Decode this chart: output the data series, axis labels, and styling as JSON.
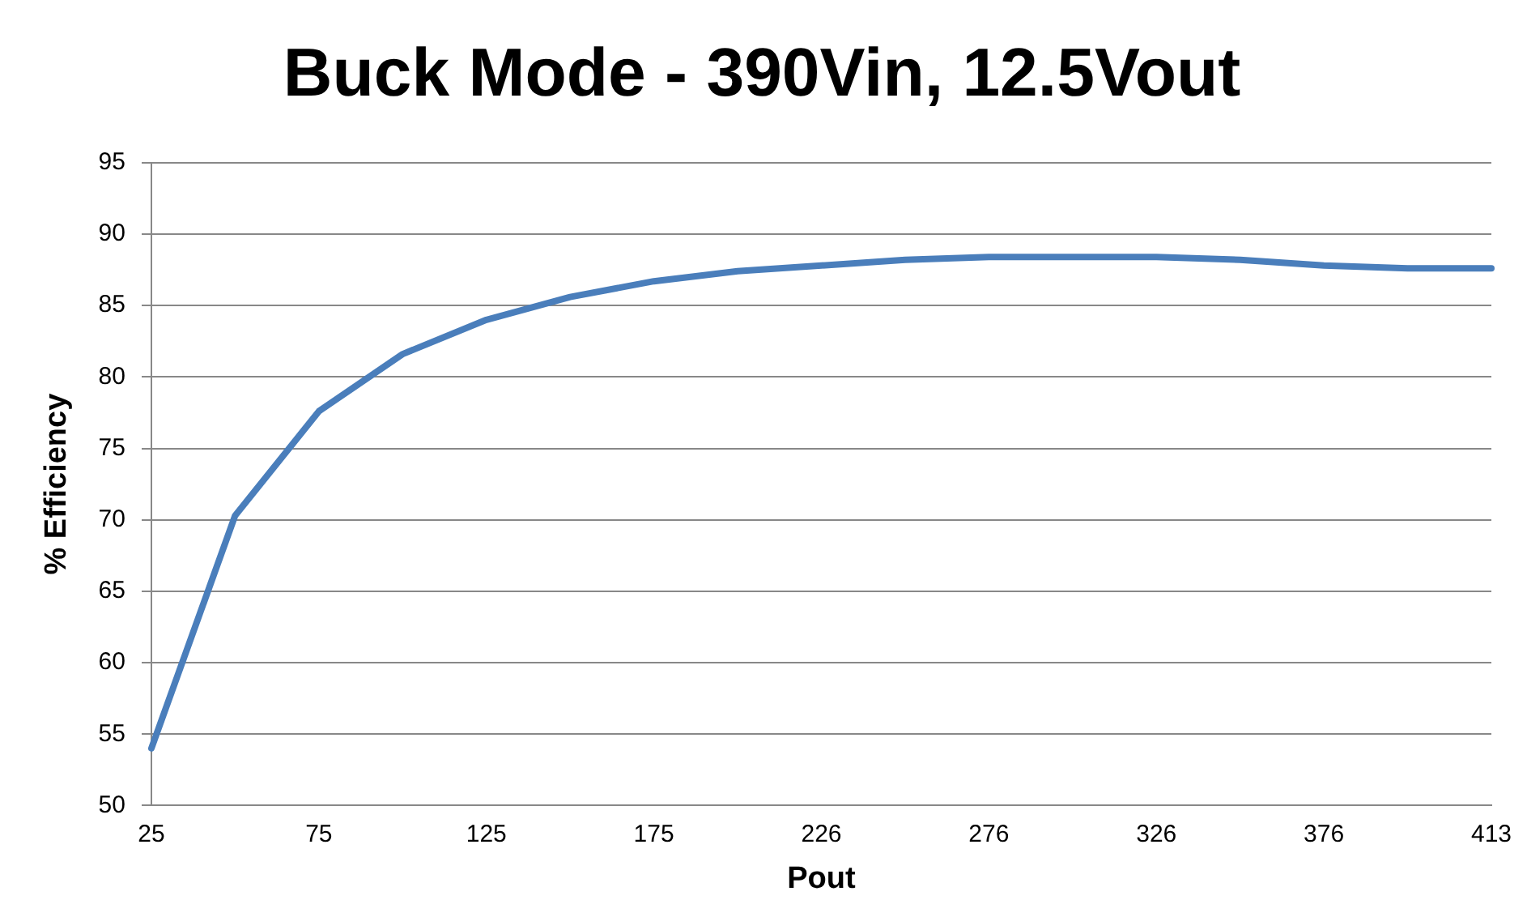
{
  "chart_data": {
    "type": "line",
    "title": "Buck Mode - 390Vin, 12.5Vout",
    "xlabel": "Pout",
    "ylabel": "% Efficiency",
    "categories": [
      "25",
      null,
      "75",
      null,
      "125",
      null,
      "175",
      null,
      "226",
      null,
      "276",
      null,
      "326",
      null,
      "376",
      null,
      "413"
    ],
    "series": [
      {
        "color": "#4a7ebb",
        "values": [
          54,
          70.3,
          77.6,
          81.6,
          84,
          85.6,
          86.7,
          87.4,
          87.8,
          88.2,
          88.4,
          88.4,
          88.4,
          88.2,
          87.8,
          87.6,
          87.6
        ]
      }
    ],
    "ylim": [
      50,
      95
    ],
    "yticks": [
      50,
      55,
      60,
      65,
      70,
      75,
      80,
      85,
      90,
      95
    ],
    "grid": "y",
    "legend": false,
    "marker": "none",
    "line_style": "solid"
  }
}
